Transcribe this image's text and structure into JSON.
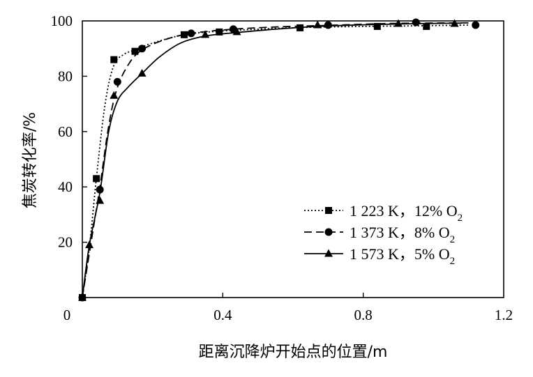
{
  "chart_data": {
    "type": "line",
    "xlabel": "距离沉降炉开始点的位置/m",
    "ylabel": "焦炭转化率/%",
    "xlim": [
      0,
      1.2
    ],
    "ylim": [
      0,
      100
    ],
    "x_ticks": [
      "0",
      "0.4",
      "0.8",
      "1.2"
    ],
    "y_ticks": [
      "20",
      "40",
      "60",
      "80",
      "100"
    ],
    "grid": false,
    "legend_position": "right",
    "series": [
      {
        "name_parts": [
          "1 223 K，12% O",
          "2"
        ],
        "name": "1 223 K，12% O2",
        "marker": "square",
        "line_style": "dotted",
        "points": [
          [
            0.0,
            0
          ],
          [
            0.04,
            43
          ],
          [
            0.09,
            86
          ],
          [
            0.15,
            89
          ],
          [
            0.29,
            95
          ],
          [
            0.39,
            96
          ],
          [
            0.62,
            97.5
          ],
          [
            0.84,
            98
          ],
          [
            0.98,
            98
          ]
        ],
        "curve": [
          [
            0.0,
            0
          ],
          [
            0.02,
            18
          ],
          [
            0.04,
            43
          ],
          [
            0.065,
            70
          ],
          [
            0.09,
            84
          ],
          [
            0.12,
            88
          ],
          [
            0.15,
            89.5
          ],
          [
            0.2,
            92
          ],
          [
            0.29,
            95
          ],
          [
            0.39,
            96.3
          ],
          [
            0.5,
            97
          ],
          [
            0.62,
            97.6
          ],
          [
            0.8,
            98
          ],
          [
            1.0,
            98.3
          ],
          [
            1.1,
            98.5
          ]
        ]
      },
      {
        "name_parts": [
          "1 373 K，8% O",
          "2"
        ],
        "name": "1 373 K，8% O2",
        "marker": "circle",
        "line_style": "dashed",
        "points": [
          [
            0.0,
            0
          ],
          [
            0.05,
            39
          ],
          [
            0.1,
            78
          ],
          [
            0.17,
            90
          ],
          [
            0.31,
            95.5
          ],
          [
            0.43,
            97
          ],
          [
            0.7,
            98.5
          ],
          [
            0.95,
            99.5
          ],
          [
            1.12,
            98.5
          ]
        ],
        "curve": [
          [
            0.0,
            0
          ],
          [
            0.025,
            20
          ],
          [
            0.05,
            40
          ],
          [
            0.075,
            62
          ],
          [
            0.1,
            76
          ],
          [
            0.135,
            85
          ],
          [
            0.17,
            89.5
          ],
          [
            0.23,
            93
          ],
          [
            0.31,
            95.5
          ],
          [
            0.43,
            97
          ],
          [
            0.55,
            97.8
          ],
          [
            0.7,
            98.4
          ],
          [
            0.85,
            99
          ],
          [
            0.95,
            99.2
          ],
          [
            1.12,
            99.3
          ]
        ]
      },
      {
        "name_parts": [
          "1 573 K，5% O",
          "2"
        ],
        "name": "1 573 K，5% O2",
        "marker": "triangle",
        "line_style": "solid",
        "points": [
          [
            0.0,
            0
          ],
          [
            0.02,
            19
          ],
          [
            0.05,
            35
          ],
          [
            0.09,
            73
          ],
          [
            0.17,
            81
          ],
          [
            0.35,
            95
          ],
          [
            0.44,
            96
          ],
          [
            0.67,
            98.5
          ],
          [
            0.9,
            99
          ],
          [
            1.06,
            99
          ]
        ],
        "curve": [
          [
            0.0,
            0
          ],
          [
            0.02,
            19
          ],
          [
            0.05,
            38
          ],
          [
            0.075,
            60
          ],
          [
            0.1,
            71
          ],
          [
            0.13,
            76
          ],
          [
            0.17,
            81
          ],
          [
            0.22,
            87
          ],
          [
            0.28,
            92
          ],
          [
            0.35,
            94.5
          ],
          [
            0.44,
            95.8
          ],
          [
            0.55,
            97
          ],
          [
            0.67,
            98
          ],
          [
            0.8,
            98.6
          ],
          [
            0.95,
            99
          ],
          [
            1.08,
            99.2
          ]
        ]
      }
    ]
  }
}
